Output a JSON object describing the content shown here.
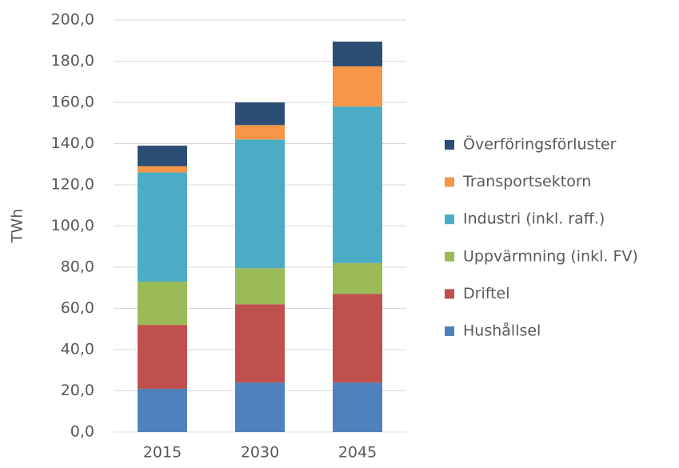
{
  "chart_data": {
    "type": "stacked_bar",
    "y_label": "TWh",
    "categories": [
      "2015",
      "2030",
      "2045"
    ],
    "series": [
      {
        "name": "Hushållsel",
        "color": "#4f81bd",
        "values": [
          21,
          24,
          24
        ]
      },
      {
        "name": "Driftel",
        "color": "#c0504d",
        "values": [
          31,
          38,
          43
        ]
      },
      {
        "name": "Uppvärmning (inkl. FV)",
        "color": "#9bbb59",
        "values": [
          21,
          17.5,
          15
        ]
      },
      {
        "name": "Industri (inkl. raff.)",
        "color": "#4bacc6",
        "values": [
          53,
          62.5,
          76
        ]
      },
      {
        "name": "Transportsektorn",
        "color": "#f79646",
        "values": [
          3,
          7,
          19.5
        ]
      },
      {
        "name": "Överföringsförluster",
        "color": "#2c4d75",
        "values": [
          10,
          11,
          12
        ]
      }
    ],
    "ylim": [
      0,
      200
    ],
    "yticks": [
      {
        "value": 0,
        "label": "0,0"
      },
      {
        "value": 20,
        "label": "20,0"
      },
      {
        "value": 40,
        "label": "40,0"
      },
      {
        "value": 60,
        "label": "60,0"
      },
      {
        "value": 80,
        "label": "80,0"
      },
      {
        "value": 100,
        "label": "100,0"
      },
      {
        "value": 120,
        "label": "120,0"
      },
      {
        "value": 140,
        "label": "140,0"
      },
      {
        "value": 160,
        "label": "160,0"
      },
      {
        "value": 180,
        "label": "180,0"
      },
      {
        "value": 200,
        "label": "200,0"
      }
    ],
    "grid": true,
    "legend": "right"
  }
}
